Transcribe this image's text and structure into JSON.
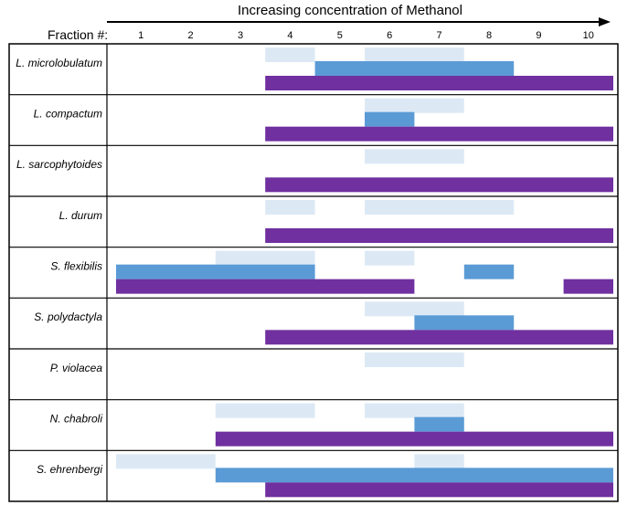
{
  "chart_data": {
    "type": "range-bar",
    "title": "Increasing concentration of Methanol",
    "x_axis_label": "Fraction #:",
    "fractions": [
      "1",
      "2",
      "3",
      "4",
      "5",
      "6",
      "7",
      "8",
      "9",
      "10"
    ],
    "xlim": [
      0.5,
      10.5
    ],
    "series": [
      {
        "name": "light",
        "color": "#dce9f5"
      },
      {
        "name": "mid",
        "color": "#5b9bd5"
      },
      {
        "name": "dark",
        "color": "#7030a0"
      }
    ],
    "species": [
      {
        "name": "L. microlobulatum",
        "light": [
          [
            4,
            4
          ],
          [
            6,
            7
          ]
        ],
        "mid": [
          [
            5,
            8
          ]
        ],
        "dark": [
          [
            4,
            10
          ]
        ]
      },
      {
        "name": "L. compactum",
        "light": [
          [
            6,
            7
          ]
        ],
        "mid": [
          [
            6,
            6
          ]
        ],
        "dark": [
          [
            4,
            10
          ]
        ]
      },
      {
        "name": "L. sarcophytoides",
        "light": [
          [
            6,
            7
          ]
        ],
        "mid": [],
        "dark": [
          [
            4,
            10
          ]
        ]
      },
      {
        "name": "L. durum",
        "light": [
          [
            4,
            4
          ],
          [
            6,
            8
          ]
        ],
        "mid": [],
        "dark": [
          [
            4,
            10
          ]
        ]
      },
      {
        "name": "S. flexibilis",
        "light": [
          [
            3,
            4
          ],
          [
            6,
            6
          ]
        ],
        "mid": [
          [
            1,
            4
          ],
          [
            8,
            8
          ]
        ],
        "dark": [
          [
            1,
            6
          ],
          [
            10,
            10
          ]
        ]
      },
      {
        "name": "S. polydactyla",
        "light": [
          [
            6,
            7
          ]
        ],
        "mid": [
          [
            7,
            8
          ]
        ],
        "dark": [
          [
            4,
            10
          ]
        ]
      },
      {
        "name": "P. violacea",
        "light": [
          [
            6,
            7
          ]
        ],
        "mid": [],
        "dark": []
      },
      {
        "name": "N. chabroli",
        "light": [
          [
            3,
            4
          ],
          [
            6,
            7
          ]
        ],
        "mid": [
          [
            7,
            7
          ]
        ],
        "dark": [
          [
            3,
            10
          ]
        ]
      },
      {
        "name": "S. ehrenbergi",
        "light": [
          [
            1,
            2
          ],
          [
            7,
            7
          ]
        ],
        "mid": [
          [
            3,
            10
          ]
        ],
        "dark": [
          [
            4,
            10
          ]
        ]
      }
    ]
  }
}
